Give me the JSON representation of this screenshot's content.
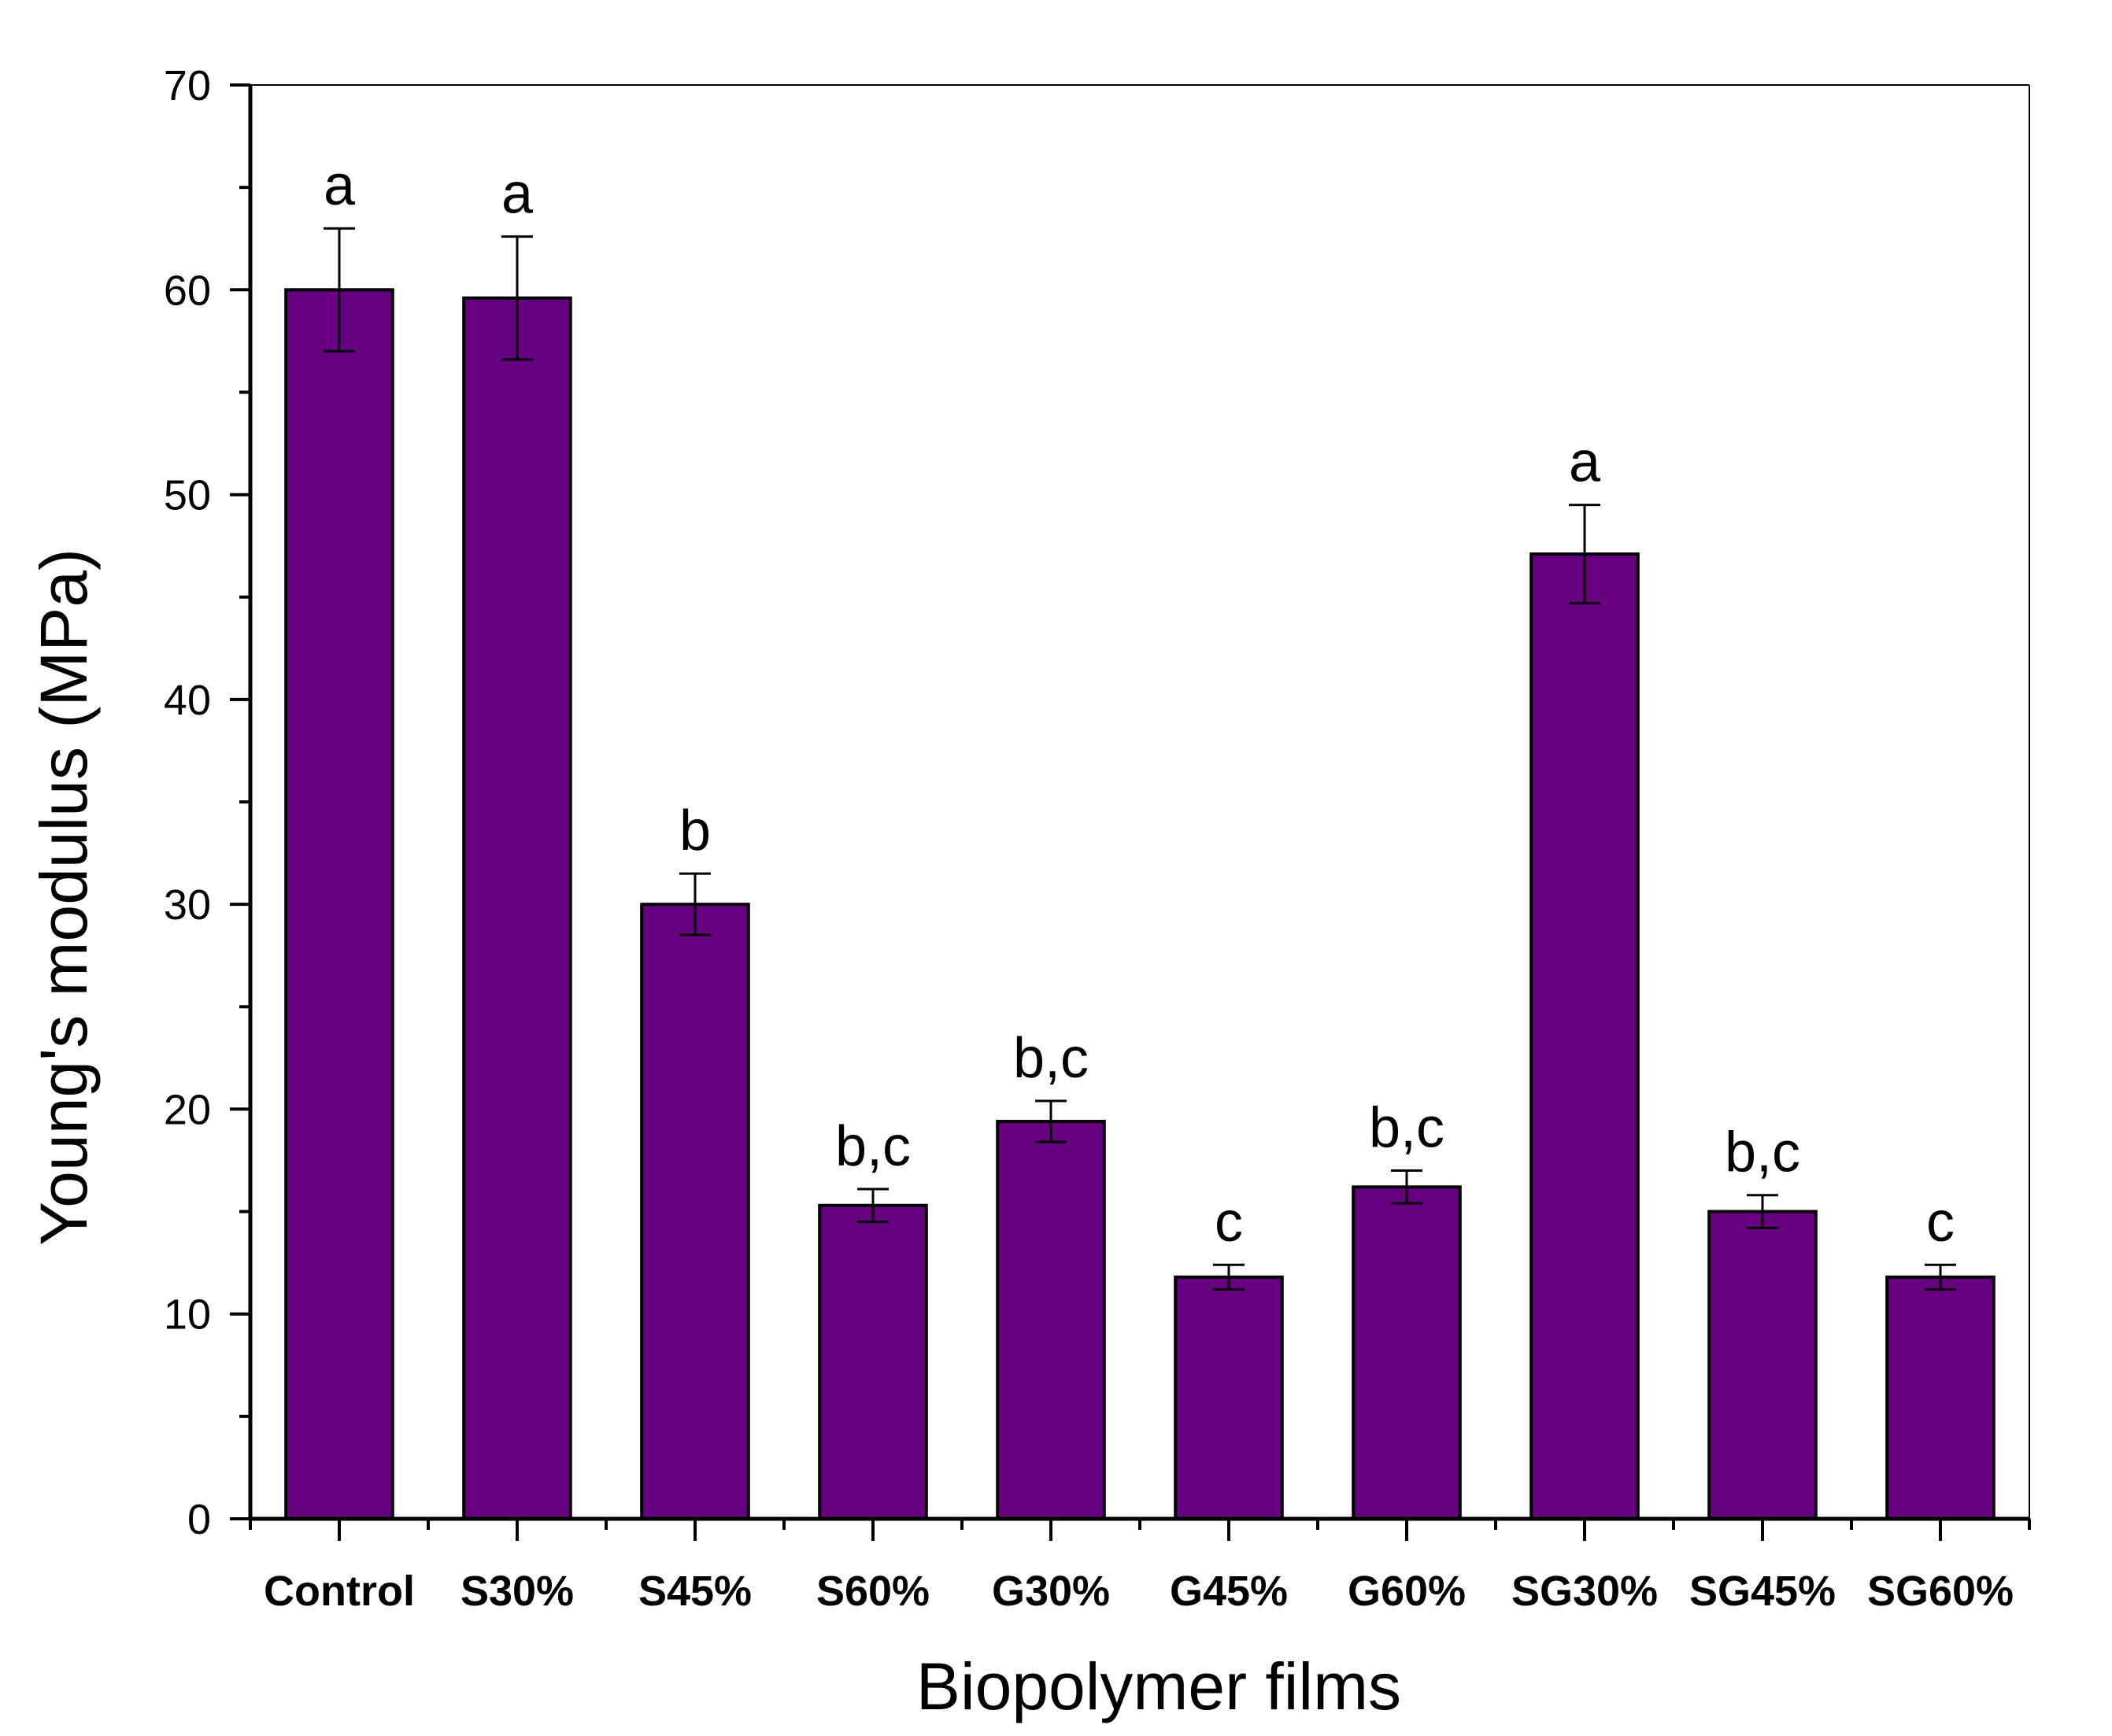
{
  "chart_data": {
    "type": "bar",
    "title": "",
    "xlabel": "Biopolymer films",
    "ylabel": "Young's modulus (MPa)",
    "ylim": [
      0,
      70
    ],
    "yticks": [
      0,
      10,
      20,
      30,
      40,
      50,
      60,
      70
    ],
    "grid": false,
    "legend": "none",
    "bar_color": "#660080",
    "categories": [
      "Control",
      "S30%",
      "S45%",
      "S60%",
      "G30%",
      "G45%",
      "G60%",
      "SG30%",
      "SG45%",
      "SG60%"
    ],
    "values": [
      60.0,
      59.6,
      30.0,
      15.3,
      19.4,
      11.8,
      16.2,
      47.1,
      15.0,
      11.8
    ],
    "errors": [
      3.0,
      3.0,
      1.5,
      0.8,
      1.0,
      0.6,
      0.8,
      2.4,
      0.8,
      0.6
    ],
    "significance": [
      "a",
      "a",
      "b",
      "b,c",
      "b,c",
      "c",
      "b,c",
      "a",
      "b,c",
      "c"
    ]
  }
}
